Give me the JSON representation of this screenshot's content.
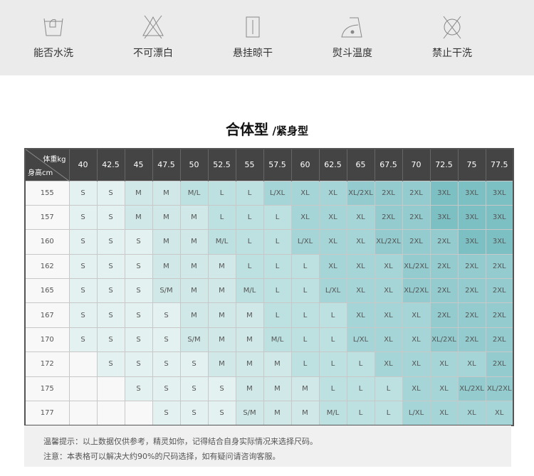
{
  "care_symbols": [
    {
      "icon": "hand-wash-icon",
      "label": "能否水洗"
    },
    {
      "icon": "no-bleach-icon",
      "label": "不可漂白"
    },
    {
      "icon": "hang-dry-icon",
      "label": "悬挂晾干"
    },
    {
      "icon": "iron-temperature-icon",
      "label": "熨斗温度"
    },
    {
      "icon": "no-dry-clean-icon",
      "label": "禁止干洗"
    }
  ],
  "title": {
    "main": "合体型",
    "sub": "/紧身型"
  },
  "table": {
    "corner_weight": "体重kg",
    "corner_height": "身高cm",
    "weights": [
      "40",
      "42.5",
      "45",
      "47.5",
      "50",
      "52.5",
      "55",
      "57.5",
      "60",
      "62.5",
      "65",
      "67.5",
      "70",
      "72.5",
      "75",
      "77.5"
    ],
    "rows": [
      {
        "height": "155",
        "sizes": [
          "S",
          "S",
          "M",
          "M",
          "M/L",
          "L",
          "L",
          "L/XL",
          "XL",
          "XL",
          "XL/2XL",
          "2XL",
          "2XL",
          "3XL",
          "3XL",
          "3XL"
        ]
      },
      {
        "height": "157",
        "sizes": [
          "S",
          "S",
          "M",
          "M",
          "M",
          "L",
          "L",
          "L",
          "XL",
          "XL",
          "XL",
          "2XL",
          "2XL",
          "3XL",
          "3XL",
          "3XL"
        ]
      },
      {
        "height": "160",
        "sizes": [
          "S",
          "S",
          "S",
          "M",
          "M",
          "M/L",
          "L",
          "L",
          "L/XL",
          "XL",
          "XL",
          "XL/2XL",
          "2XL",
          "2XL",
          "3XL",
          "3XL"
        ]
      },
      {
        "height": "162",
        "sizes": [
          "S",
          "S",
          "S",
          "M",
          "M",
          "M",
          "L",
          "L",
          "L",
          "XL",
          "XL",
          "XL",
          "XL/2XL",
          "2XL",
          "2XL",
          "2XL"
        ]
      },
      {
        "height": "165",
        "sizes": [
          "S",
          "S",
          "S",
          "S/M",
          "M",
          "M",
          "M/L",
          "L",
          "L",
          "L/XL",
          "XL",
          "XL",
          "XL/2XL",
          "2XL",
          "2XL",
          "2XL"
        ]
      },
      {
        "height": "167",
        "sizes": [
          "S",
          "S",
          "S",
          "S",
          "M",
          "M",
          "M",
          "L",
          "L",
          "L",
          "XL",
          "XL",
          "XL",
          "2XL",
          "2XL",
          "2XL"
        ]
      },
      {
        "height": "170",
        "sizes": [
          "S",
          "S",
          "S",
          "S",
          "S/M",
          "M",
          "M",
          "M/L",
          "L",
          "L",
          "L/XL",
          "XL",
          "XL",
          "XL/2XL",
          "2XL",
          "2XL"
        ]
      },
      {
        "height": "172",
        "sizes": [
          "",
          "S",
          "S",
          "S",
          "S",
          "M",
          "M",
          "M",
          "L",
          "L",
          "L",
          "XL",
          "XL",
          "XL",
          "XL",
          "2XL"
        ]
      },
      {
        "height": "175",
        "sizes": [
          "",
          "",
          "S",
          "S",
          "S",
          "S",
          "M",
          "M",
          "M",
          "L",
          "L",
          "L",
          "XL",
          "XL",
          "XL/2XL",
          "XL/2XL"
        ]
      },
      {
        "height": "177",
        "sizes": [
          "",
          "",
          "",
          "S",
          "S",
          "S",
          "S/M",
          "M",
          "M",
          "M/L",
          "L",
          "L",
          "L/XL",
          "XL",
          "XL",
          "XL"
        ]
      }
    ]
  },
  "notes": [
    "温馨提示：以上数据仅供参考，精灵如你，记得结合自身实际情况来选择尺码。",
    "注意：本表格可以解决大约90%的尺码选择，如有疑问请咨询客服。"
  ],
  "colors": {
    "header_bg": "#444444",
    "care_bg": "#ebebeb",
    "S": "#e4f1f1",
    "M": "#d0e8e8",
    "L": "#bde0e1",
    "XL": "#a6d5d7",
    "2XL": "#93cbce",
    "3XL": "#7dc0c4"
  }
}
